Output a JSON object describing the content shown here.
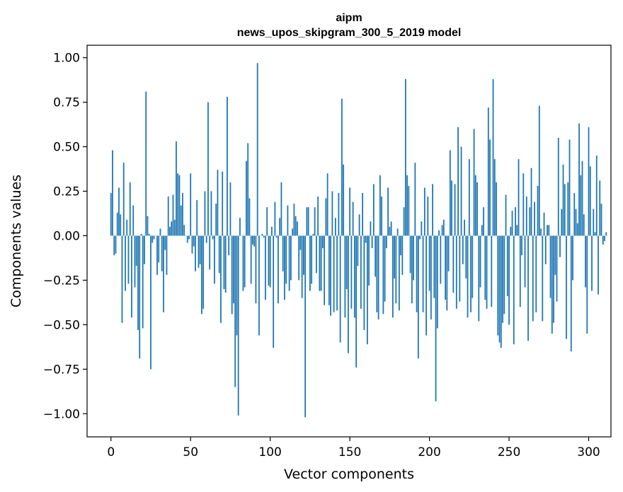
{
  "chart_data": {
    "type": "bar",
    "title_line1": "aipm",
    "title_line2": "news_upos_skipgram_300_5_2019 model",
    "xlabel": "Vector components",
    "ylabel": "Components values",
    "xlim": [
      -15,
      314
    ],
    "ylim": [
      -1.13,
      1.07
    ],
    "xticks": [
      0,
      50,
      100,
      150,
      200,
      250,
      300
    ],
    "xtick_labels": [
      "0",
      "50",
      "100",
      "150",
      "200",
      "250",
      "300"
    ],
    "yticks": [
      1.0,
      0.75,
      0.5,
      0.25,
      0.0,
      -0.25,
      -0.5,
      -0.75,
      -1.0
    ],
    "ytick_labels": [
      "1.00",
      "0.75",
      "0.50",
      "0.25",
      "0.00",
      "−0.25",
      "−0.50",
      "−0.75",
      "−1.00"
    ],
    "bar_color": "#1f77b4",
    "grid": false,
    "values": [
      0.24,
      0.48,
      -0.11,
      -0.1,
      0.13,
      0.27,
      0.12,
      -0.49,
      0.41,
      -0.31,
      0.09,
      -0.27,
      0.3,
      -0.46,
      0.17,
      -0.29,
      -0.17,
      -0.53,
      -0.69,
      0.01,
      -0.52,
      -0.16,
      0.81,
      0.11,
      0.01,
      -0.75,
      -0.04,
      -0.02,
      0.0,
      -0.22,
      -0.15,
      0.04,
      -0.2,
      -0.43,
      -0.08,
      -0.22,
      0.22,
      0.05,
      0.08,
      0.23,
      0.09,
      0.53,
      0.35,
      0.34,
      0.17,
      0.24,
      0.06,
      0.0,
      -0.04,
      -0.02,
      0.35,
      -0.1,
      -0.06,
      -0.2,
      0.2,
      -0.18,
      -0.16,
      -0.44,
      -0.41,
      0.25,
      -0.04,
      0.75,
      -0.19,
      0.25,
      -0.02,
      -0.27,
      0.18,
      0.37,
      -0.21,
      -0.49,
      0.36,
      -0.3,
      -0.32,
      0.78,
      -0.11,
      0.3,
      -0.44,
      -0.38,
      -0.85,
      -0.56,
      -1.01,
      0.1,
      0.0,
      -0.31,
      -0.29,
      0.42,
      0.52,
      0.21,
      -0.27,
      -0.05,
      -0.06,
      -0.38,
      0.97,
      -0.56,
      0.0,
      0.01,
      -0.01,
      -0.36,
      0.16,
      -0.28,
      -0.29,
      0.05,
      -0.63,
      0.19,
      -0.01,
      -0.38,
      0.1,
      0.3,
      -0.2,
      -0.36,
      -0.27,
      0.17,
      -0.31,
      -0.25,
      0.04,
      0.18,
      0.11,
      0.08,
      -0.25,
      -0.08,
      -0.35,
      -0.22,
      -1.02,
      0.16,
      0.16,
      -0.31,
      -0.27,
      0.01,
      0.16,
      -0.21,
      0.22,
      -0.31,
      -0.31,
      -0.07,
      -0.39,
      0.21,
      0.35,
      -0.39,
      -0.45,
      0.25,
      -0.43,
      0.1,
      -0.42,
      0.24,
      -0.6,
      0.77,
      0.4,
      -0.46,
      -0.3,
      -0.66,
      0.27,
      -0.41,
      0.19,
      -0.46,
      -0.74,
      -0.17,
      0.12,
      -0.41,
      0.24,
      -0.53,
      -0.04,
      -0.61,
      -0.28,
      0.08,
      -0.07,
      0.29,
      -0.23,
      -0.43,
      -0.47,
      0.34,
      0.22,
      -0.44,
      -0.37,
      -0.07,
      0.27,
      0.05,
      0.08,
      -0.46,
      -0.24,
      -0.38,
      0.04,
      -0.42,
      -0.11,
      -0.22,
      0.16,
      0.88,
      0.34,
      0.28,
      -0.21,
      -0.38,
      -0.25,
      0.41,
      -0.43,
      -0.69,
      -0.02,
      0.08,
      -0.43,
      0.27,
      -0.56,
      0.22,
      -0.31,
      -0.47,
      0.29,
      -0.35,
      -0.93,
      -0.52,
      0.03,
      -0.27,
      0.06,
      0.09,
      -0.36,
      -0.42,
      -0.2,
      0.48,
      0.31,
      -0.32,
      0.29,
      -0.41,
      0.61,
      -0.37,
      0.5,
      -0.16,
      0.09,
      -0.24,
      -0.46,
      0.43,
      -0.43,
      -0.35,
      0.6,
      0.34,
      0.3,
      -0.48,
      -0.29,
      0.06,
      0.16,
      -0.36,
      -0.41,
      0.72,
      0.54,
      -0.4,
      0.88,
      0.43,
      0.3,
      -0.56,
      -0.6,
      -0.63,
      -0.49,
      -0.44,
      0.23,
      -0.34,
      -0.5,
      0.05,
      0.14,
      -0.61,
      0.16,
      0.06,
      0.43,
      -0.4,
      -0.11,
      0.35,
      -0.29,
      0.22,
      -0.59,
      0.16,
      0.38,
      -0.48,
      0.19,
      -0.43,
      0.28,
      0.73,
      0.04,
      -0.48,
      0.13,
      -0.16,
      0.06,
      0.06,
      -0.35,
      -0.55,
      -0.49,
      -0.22,
      -0.37,
      0.55,
      -0.12,
      0.15,
      0.4,
      0.29,
      -0.58,
      0.3,
      0.54,
      -0.65,
      -0.25,
      0.24,
      0.15,
      0.07,
      0.63,
      0.34,
      0.42,
      0.12,
      -0.29,
      -0.55,
      0.61,
      0.39,
      -0.31,
      0.15,
      0.02,
      0.45,
      -0.33,
      0.31,
      0.18,
      -0.05,
      -0.03,
      0.02
    ]
  }
}
